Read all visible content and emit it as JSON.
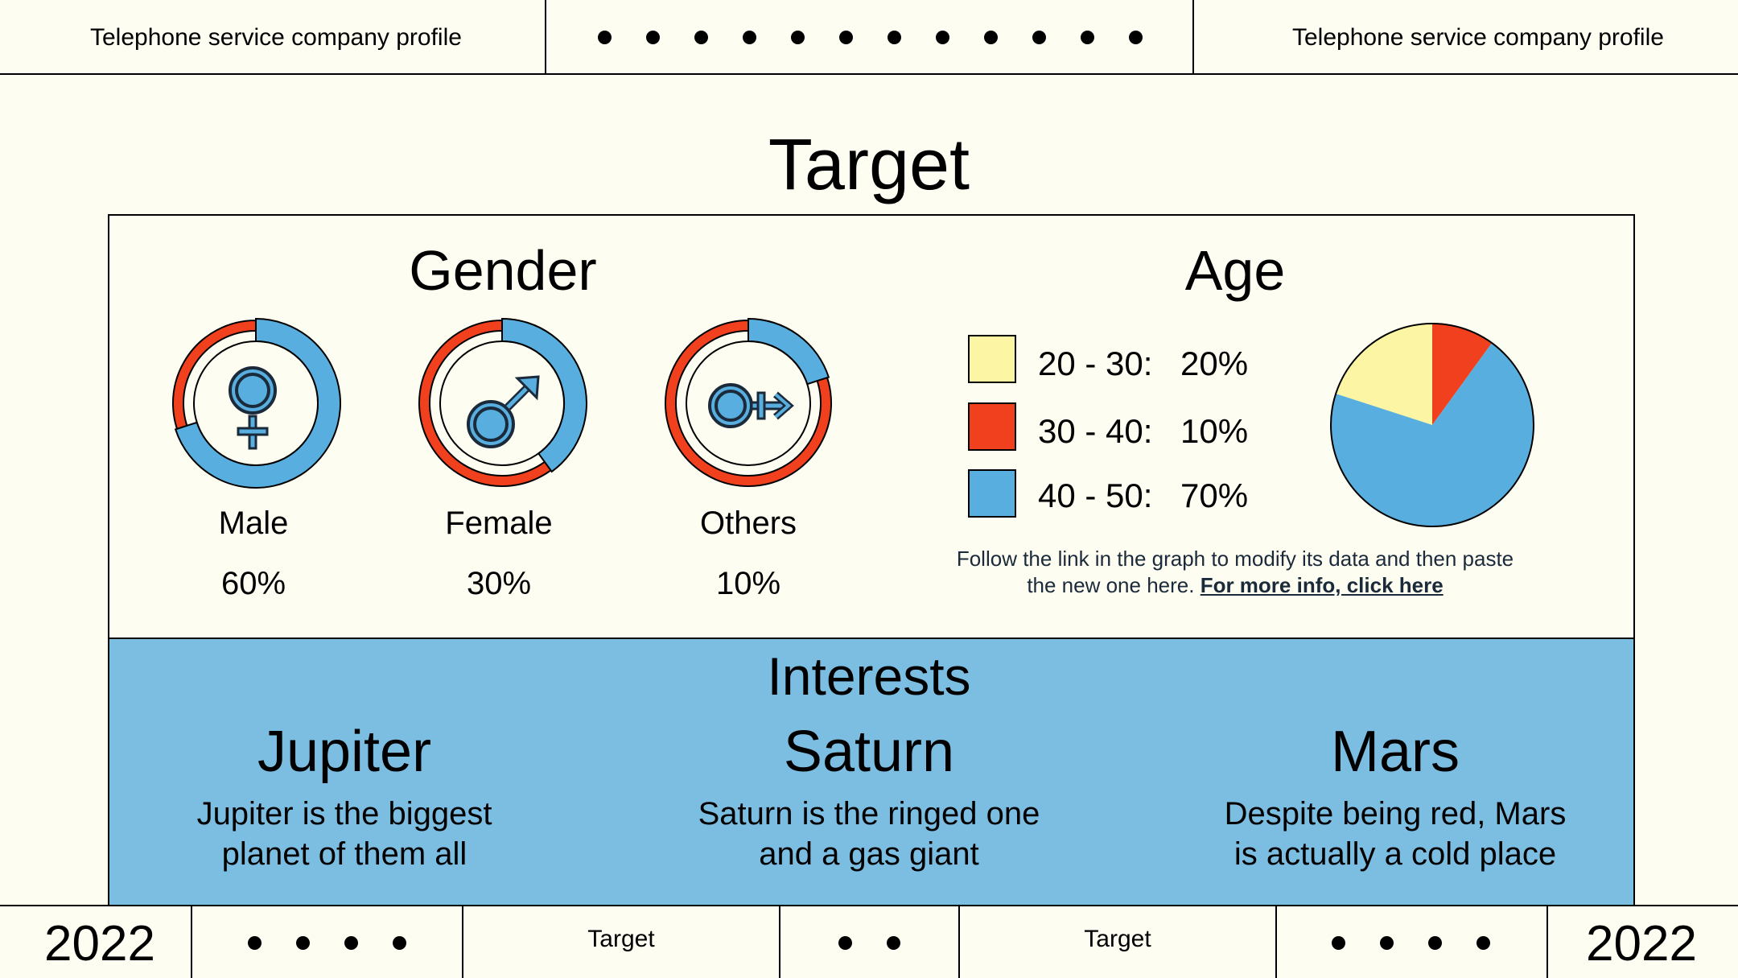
{
  "header": {
    "left_title": "Telephone service company profile",
    "right_title": "Telephone service company profile"
  },
  "page_title": "Target",
  "gender": {
    "title": "Gender",
    "items": [
      {
        "label": "Male",
        "percent": "60%",
        "value": 60,
        "icon": "female-symbol-icon"
      },
      {
        "label": "Female",
        "percent": "30%",
        "value": 30,
        "icon": "male-symbol-icon"
      },
      {
        "label": "Others",
        "percent": "10%",
        "value": 10,
        "icon": "other-gender-symbol-icon"
      }
    ]
  },
  "age": {
    "title": "Age",
    "legend": [
      {
        "range": "20 - 30:",
        "percent": "20%",
        "color": "#fbf5a4"
      },
      {
        "range": "30 - 40:",
        "percent": "10%",
        "color": "#f0401e"
      },
      {
        "range": "40 - 50:",
        "percent": "70%",
        "color": "#58aede"
      }
    ],
    "note_text": "Follow the link in the graph to modify its data and then paste the new one here. ",
    "note_link": "For more info, click here"
  },
  "chart_data": {
    "type": "pie",
    "categories": [
      "20 - 30",
      "30 - 40",
      "40 - 50"
    ],
    "values": [
      20,
      10,
      70
    ],
    "colors": [
      "#fbf5a4",
      "#f0401e",
      "#58aede"
    ]
  },
  "interests": {
    "title": "Interests",
    "items": [
      {
        "title": "Jupiter",
        "line1": "Jupiter is the biggest",
        "line2": "planet of them all"
      },
      {
        "title": "Saturn",
        "line1": "Saturn is the ringed one",
        "line2": "and a gas giant"
      },
      {
        "title": "Mars",
        "line1": "Despite being red, Mars",
        "line2": "is actually a cold place"
      }
    ]
  },
  "footer": {
    "year_left": "2022",
    "label_left": "Target",
    "label_right": "Target",
    "year_right": "2022"
  },
  "colors": {
    "background": "#fefdf1",
    "blue": "#58aede",
    "interests_bg": "#7cbde2",
    "red": "#f0401e",
    "yellow": "#fbf5a4"
  }
}
